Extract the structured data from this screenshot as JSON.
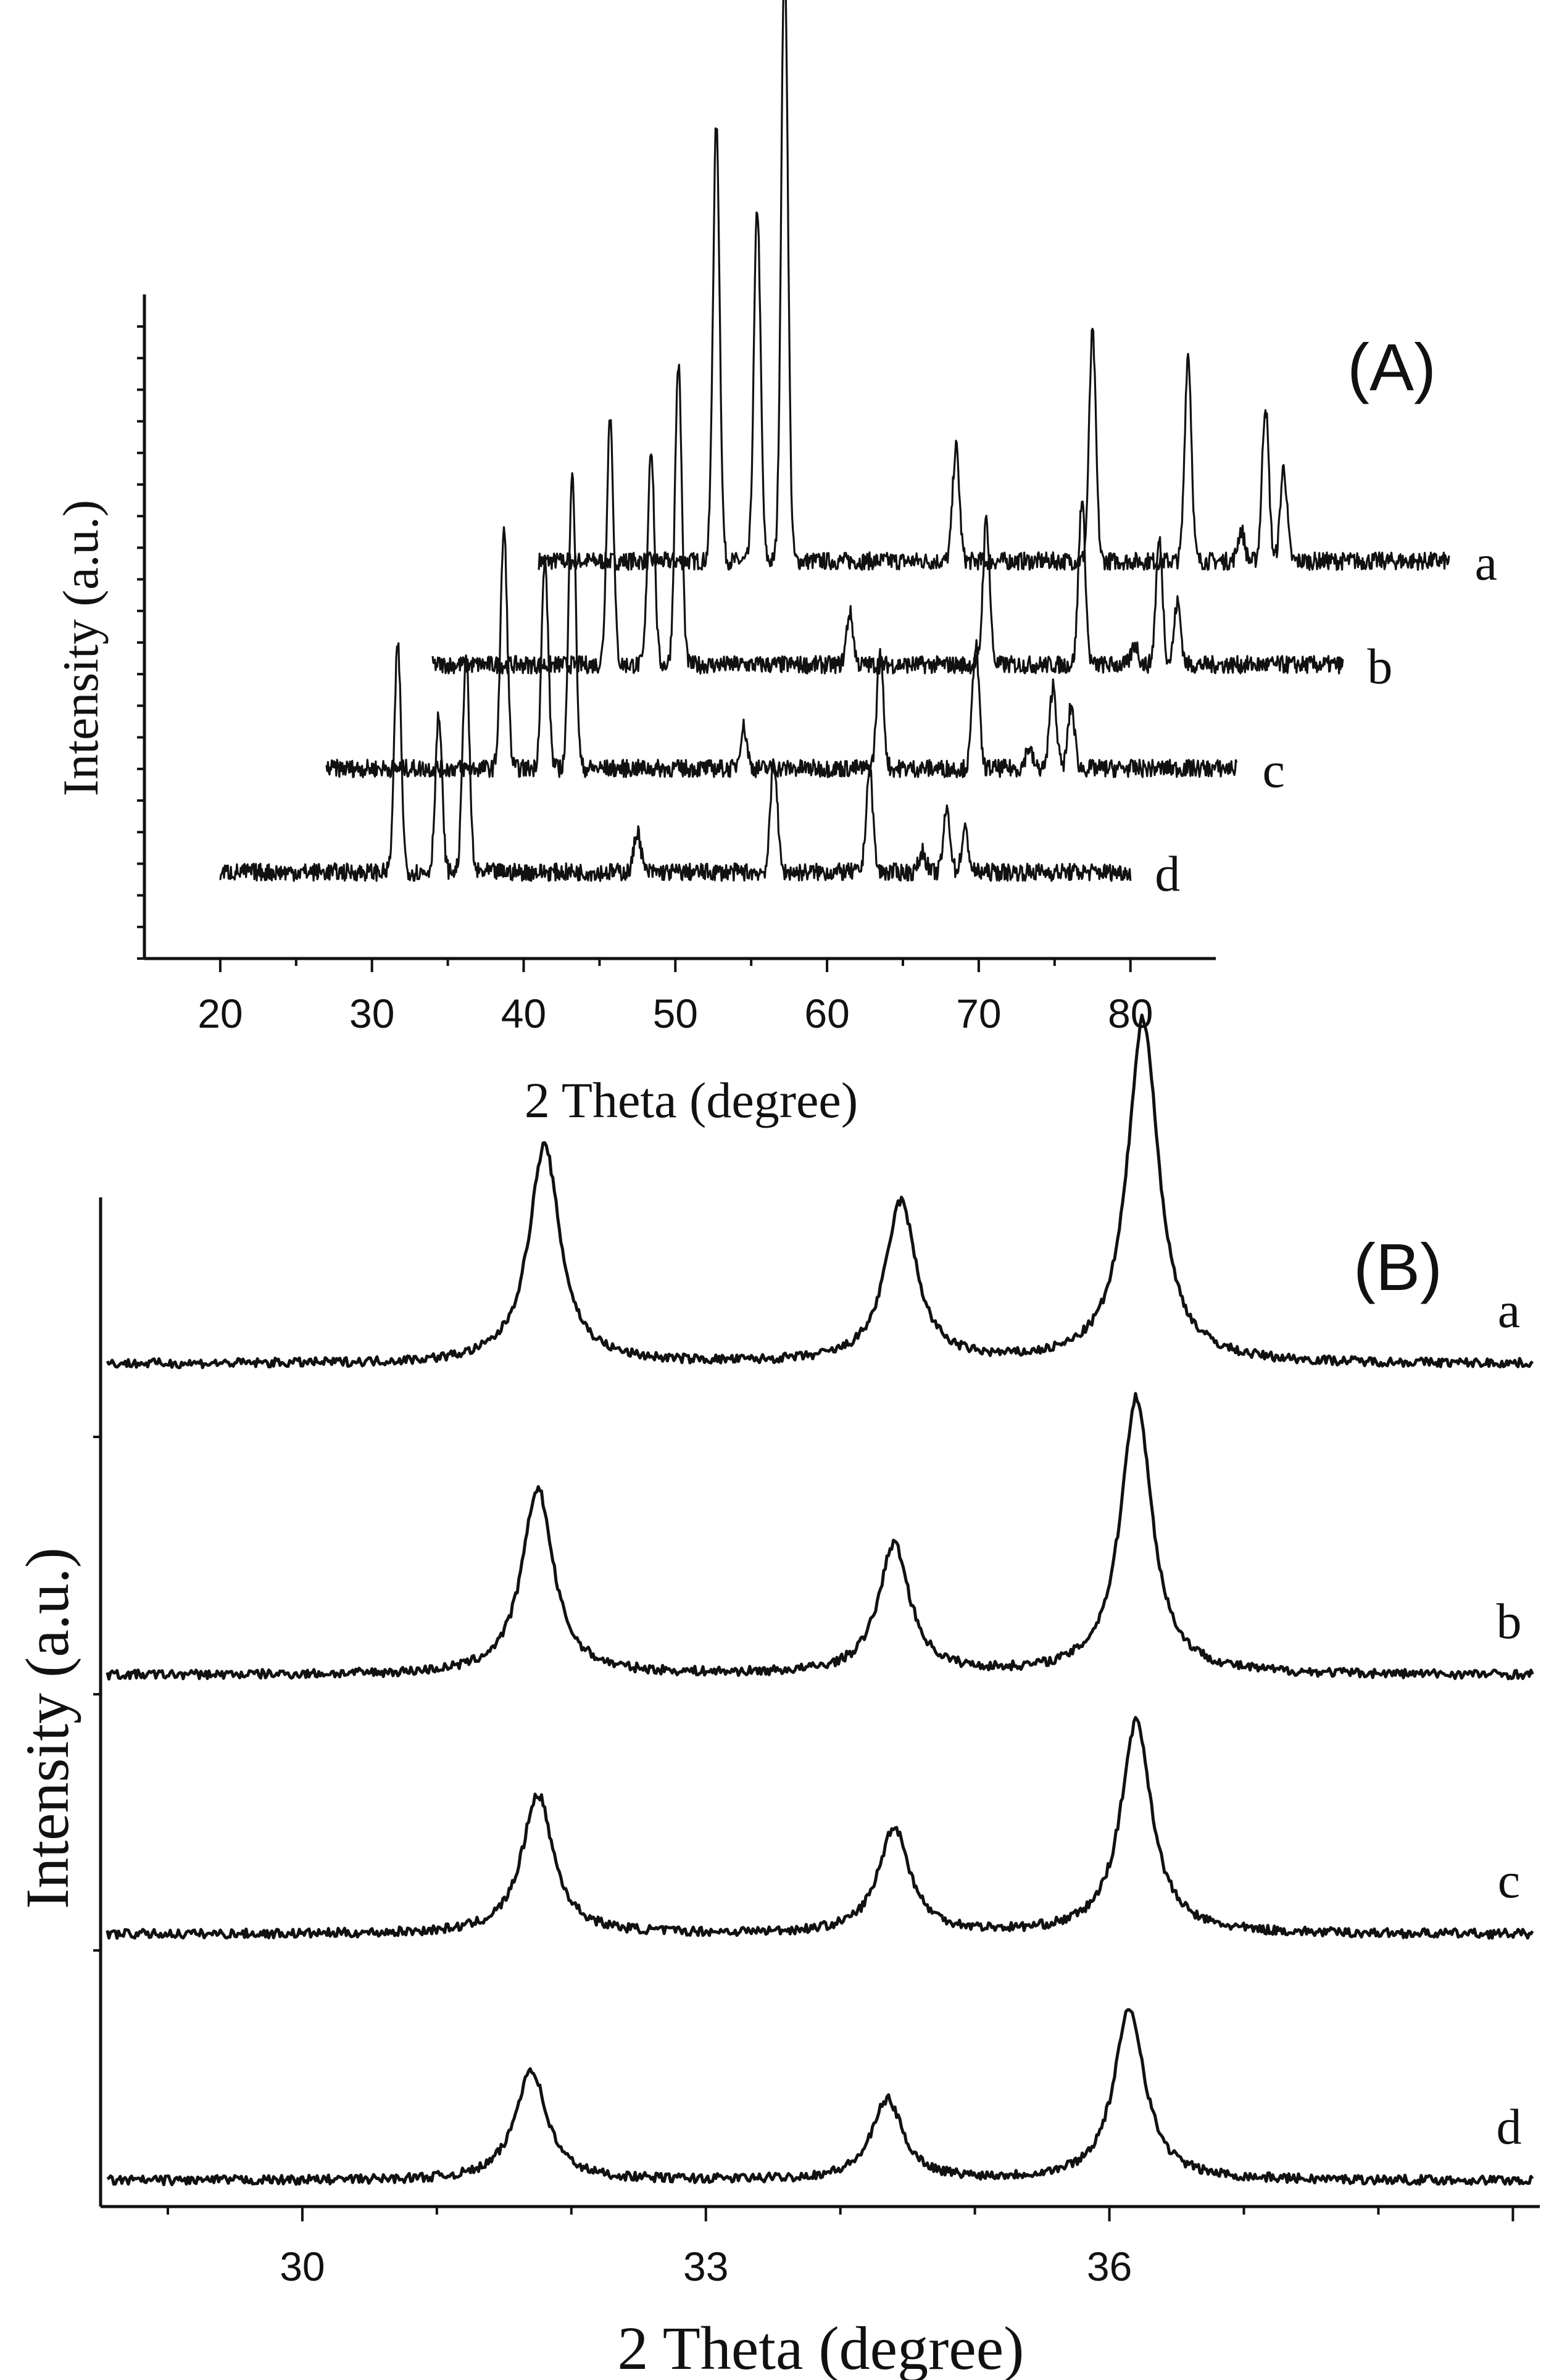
{
  "chart_data": [
    {
      "type": "line",
      "panel_label": "(A)",
      "xlabel": "2 Theta (degree)",
      "ylabel": "Intensity (a.u.)",
      "xlim": [
        15,
        85
      ],
      "x_ticks": [
        "20",
        "30",
        "40",
        "50",
        "60",
        "70",
        "80"
      ],
      "x_tick_values": [
        20,
        30,
        40,
        50,
        60,
        70,
        80
      ],
      "stacking": "waterfall: each series shifted right and up",
      "peak_positions_2theta": [
        31.7,
        34.4,
        36.2,
        47.5,
        56.5,
        62.8,
        66.3,
        67.9,
        69.1
      ],
      "series": [
        {
          "name": "a",
          "x_offset": 21,
          "baseline": 3,
          "peak_heights": [
            4.2,
            3.4,
            5.9,
            1.1,
            2.2,
            2.0,
            0.3,
            1.5,
            0.9
          ]
        },
        {
          "name": "b",
          "x_offset": 14,
          "baseline": 2,
          "peak_heights": [
            2.4,
            2.1,
            2.9,
            0.5,
            1.4,
            1.6,
            0.2,
            1.2,
            0.6
          ]
        },
        {
          "name": "c",
          "x_offset": 7,
          "baseline": 1,
          "peak_heights": [
            2.3,
            2.0,
            2.9,
            0.4,
            1.1,
            1.2,
            0.2,
            0.8,
            0.6
          ]
        },
        {
          "name": "d",
          "x_offset": 0,
          "baseline": 0,
          "peak_heights": [
            2.2,
            1.5,
            2.1,
            0.4,
            1.1,
            1.0,
            0.2,
            0.6,
            0.4
          ]
        }
      ]
    },
    {
      "type": "line",
      "panel_label": "(B)",
      "xlabel": "2 Theta (degree)",
      "ylabel": "Intensity (a.u.)",
      "xlim": [
        28.5,
        39.2
      ],
      "x_ticks": [
        "30",
        "33",
        "36"
      ],
      "x_tick_values": [
        30,
        33,
        36
      ],
      "peak_positions_2theta": [
        31.7,
        34.4,
        36.2
      ],
      "series": [
        {
          "name": "a",
          "baseline": 3.25,
          "peak_x": [
            31.8,
            34.45,
            36.25
          ],
          "peak_heights": [
            0.84,
            0.62,
            1.33
          ]
        },
        {
          "name": "b",
          "baseline": 2.05,
          "peak_x": [
            31.75,
            34.4,
            36.2
          ],
          "peak_heights": [
            0.72,
            0.5,
            1.07
          ]
        },
        {
          "name": "c",
          "baseline": 1.05,
          "peak_x": [
            31.75,
            34.4,
            36.2
          ],
          "peak_heights": [
            0.54,
            0.41,
            0.82
          ]
        },
        {
          "name": "d",
          "baseline": 0.1,
          "peak_x": [
            31.7,
            34.35,
            36.15
          ],
          "peak_heights": [
            0.43,
            0.31,
            0.66
          ]
        }
      ]
    }
  ]
}
